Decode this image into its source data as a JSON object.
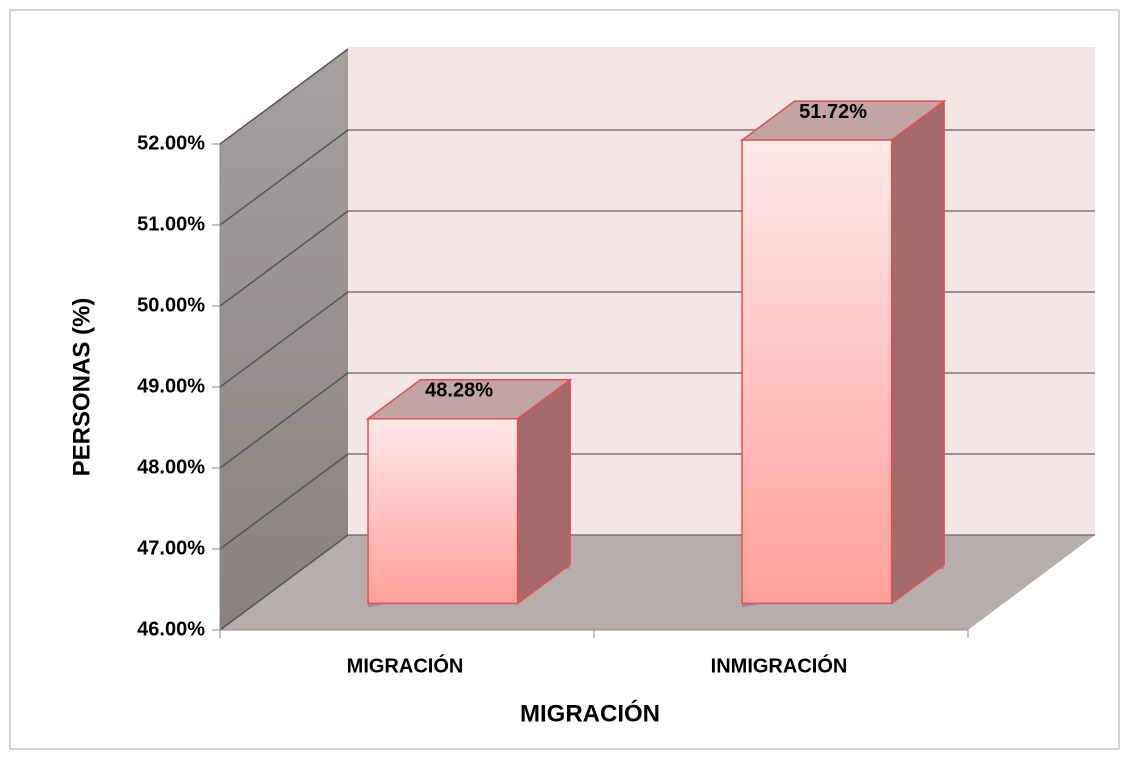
{
  "chart_data": {
    "type": "bar3d",
    "categories": [
      "MIGRACIÓN",
      "INMIGRACIÓN"
    ],
    "values": [
      48.28,
      51.72
    ],
    "value_labels": [
      "48.28%",
      "51.72%"
    ],
    "color": "#ff9f9a",
    "ylim": [
      46,
      52
    ],
    "yticks": [
      {
        "value": 46,
        "label": "46.00%"
      },
      {
        "value": 47,
        "label": "47.00%"
      },
      {
        "value": 48,
        "label": "48.00%"
      },
      {
        "value": 49,
        "label": "49.00%"
      },
      {
        "value": 50,
        "label": "50.00%"
      },
      {
        "value": 51,
        "label": "51.00%"
      },
      {
        "value": 52,
        "label": "52.00%"
      }
    ],
    "xlabel": "MIGRACIÓN",
    "ylabel": "PERSONAS (%)",
    "grid": true
  }
}
